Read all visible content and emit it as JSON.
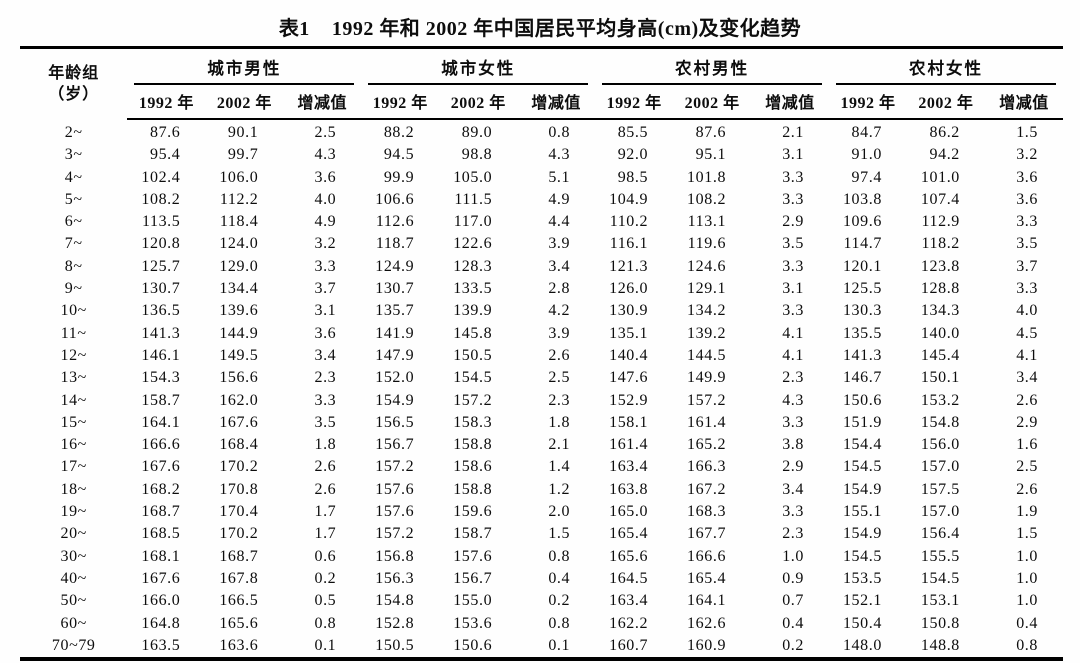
{
  "title": {
    "label": "表1",
    "text": "1992 年和 2002 年中国居民平均身高(cm)及变化趋势"
  },
  "table": {
    "age_header": {
      "line1": "年龄组",
      "line2": "（岁）"
    },
    "groups": [
      "城市男性",
      "城市女性",
      "农村男性",
      "农村女性"
    ],
    "subheaders": [
      "1992 年",
      "2002 年",
      "增减值"
    ],
    "rows": [
      {
        "age": "2~",
        "values": [
          "87.6",
          "90.1",
          "2.5",
          "88.2",
          "89.0",
          "0.8",
          "85.5",
          "87.6",
          "2.1",
          "84.7",
          "86.2",
          "1.5"
        ]
      },
      {
        "age": "3~",
        "values": [
          "95.4",
          "99.7",
          "4.3",
          "94.5",
          "98.8",
          "4.3",
          "92.0",
          "95.1",
          "3.1",
          "91.0",
          "94.2",
          "3.2"
        ]
      },
      {
        "age": "4~",
        "values": [
          "102.4",
          "106.0",
          "3.6",
          "99.9",
          "105.0",
          "5.1",
          "98.5",
          "101.8",
          "3.3",
          "97.4",
          "101.0",
          "3.6"
        ]
      },
      {
        "age": "5~",
        "values": [
          "108.2",
          "112.2",
          "4.0",
          "106.6",
          "111.5",
          "4.9",
          "104.9",
          "108.2",
          "3.3",
          "103.8",
          "107.4",
          "3.6"
        ]
      },
      {
        "age": "6~",
        "values": [
          "113.5",
          "118.4",
          "4.9",
          "112.6",
          "117.0",
          "4.4",
          "110.2",
          "113.1",
          "2.9",
          "109.6",
          "112.9",
          "3.3"
        ]
      },
      {
        "age": "7~",
        "values": [
          "120.8",
          "124.0",
          "3.2",
          "118.7",
          "122.6",
          "3.9",
          "116.1",
          "119.6",
          "3.5",
          "114.7",
          "118.2",
          "3.5"
        ]
      },
      {
        "age": "8~",
        "values": [
          "125.7",
          "129.0",
          "3.3",
          "124.9",
          "128.3",
          "3.4",
          "121.3",
          "124.6",
          "3.3",
          "120.1",
          "123.8",
          "3.7"
        ]
      },
      {
        "age": "9~",
        "values": [
          "130.7",
          "134.4",
          "3.7",
          "130.7",
          "133.5",
          "2.8",
          "126.0",
          "129.1",
          "3.1",
          "125.5",
          "128.8",
          "3.3"
        ]
      },
      {
        "age": "10~",
        "values": [
          "136.5",
          "139.6",
          "3.1",
          "135.7",
          "139.9",
          "4.2",
          "130.9",
          "134.2",
          "3.3",
          "130.3",
          "134.3",
          "4.0"
        ]
      },
      {
        "age": "11~",
        "values": [
          "141.3",
          "144.9",
          "3.6",
          "141.9",
          "145.8",
          "3.9",
          "135.1",
          "139.2",
          "4.1",
          "135.5",
          "140.0",
          "4.5"
        ]
      },
      {
        "age": "12~",
        "values": [
          "146.1",
          "149.5",
          "3.4",
          "147.9",
          "150.5",
          "2.6",
          "140.4",
          "144.5",
          "4.1",
          "141.3",
          "145.4",
          "4.1"
        ]
      },
      {
        "age": "13~",
        "values": [
          "154.3",
          "156.6",
          "2.3",
          "152.0",
          "154.5",
          "2.5",
          "147.6",
          "149.9",
          "2.3",
          "146.7",
          "150.1",
          "3.4"
        ]
      },
      {
        "age": "14~",
        "values": [
          "158.7",
          "162.0",
          "3.3",
          "154.9",
          "157.2",
          "2.3",
          "152.9",
          "157.2",
          "4.3",
          "150.6",
          "153.2",
          "2.6"
        ]
      },
      {
        "age": "15~",
        "values": [
          "164.1",
          "167.6",
          "3.5",
          "156.5",
          "158.3",
          "1.8",
          "158.1",
          "161.4",
          "3.3",
          "151.9",
          "154.8",
          "2.9"
        ]
      },
      {
        "age": "16~",
        "values": [
          "166.6",
          "168.4",
          "1.8",
          "156.7",
          "158.8",
          "2.1",
          "161.4",
          "165.2",
          "3.8",
          "154.4",
          "156.0",
          "1.6"
        ]
      },
      {
        "age": "17~",
        "values": [
          "167.6",
          "170.2",
          "2.6",
          "157.2",
          "158.6",
          "1.4",
          "163.4",
          "166.3",
          "2.9",
          "154.5",
          "157.0",
          "2.5"
        ]
      },
      {
        "age": "18~",
        "values": [
          "168.2",
          "170.8",
          "2.6",
          "157.6",
          "158.8",
          "1.2",
          "163.8",
          "167.2",
          "3.4",
          "154.9",
          "157.5",
          "2.6"
        ]
      },
      {
        "age": "19~",
        "values": [
          "168.7",
          "170.4",
          "1.7",
          "157.6",
          "159.6",
          "2.0",
          "165.0",
          "168.3",
          "3.3",
          "155.1",
          "157.0",
          "1.9"
        ]
      },
      {
        "age": "20~",
        "values": [
          "168.5",
          "170.2",
          "1.7",
          "157.2",
          "158.7",
          "1.5",
          "165.4",
          "167.7",
          "2.3",
          "154.9",
          "156.4",
          "1.5"
        ]
      },
      {
        "age": "30~",
        "values": [
          "168.1",
          "168.7",
          "0.6",
          "156.8",
          "157.6",
          "0.8",
          "165.6",
          "166.6",
          "1.0",
          "154.5",
          "155.5",
          "1.0"
        ]
      },
      {
        "age": "40~",
        "values": [
          "167.6",
          "167.8",
          "0.2",
          "156.3",
          "156.7",
          "0.4",
          "164.5",
          "165.4",
          "0.9",
          "153.5",
          "154.5",
          "1.0"
        ]
      },
      {
        "age": "50~",
        "values": [
          "166.0",
          "166.5",
          "0.5",
          "154.8",
          "155.0",
          "0.2",
          "163.4",
          "164.1",
          "0.7",
          "152.1",
          "153.1",
          "1.0"
        ]
      },
      {
        "age": "60~",
        "values": [
          "164.8",
          "165.6",
          "0.8",
          "152.8",
          "153.6",
          "0.8",
          "162.2",
          "162.6",
          "0.4",
          "150.4",
          "150.8",
          "0.4"
        ]
      },
      {
        "age": "70~79",
        "values": [
          "163.5",
          "163.6",
          "0.1",
          "150.5",
          "150.6",
          "0.1",
          "160.7",
          "160.9",
          "0.2",
          "148.0",
          "148.8",
          "0.8"
        ]
      }
    ]
  },
  "colors": {
    "paper": "#fefefe",
    "ink": "#0d0d0d",
    "rule": "#000000"
  }
}
